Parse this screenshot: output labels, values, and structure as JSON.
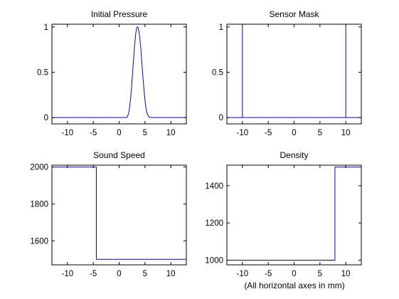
{
  "figure_note": "(All horizontal axes in mm)",
  "colors": {
    "line": "#0000ff",
    "axis": "#000000",
    "background": "#ffffff"
  },
  "chart_data": [
    {
      "type": "line",
      "title": "Initial Pressure",
      "xlabel": "",
      "ylabel": "",
      "xlim": [
        -13,
        13
      ],
      "ylim": [
        -0.07,
        1.03
      ],
      "xticks": [
        -10,
        -5,
        0,
        5,
        10
      ],
      "yticks": [
        0,
        0.5,
        1
      ],
      "ytick_labels": [
        "0",
        "0.5",
        "1"
      ],
      "grid": false,
      "series": [
        {
          "x": [
            -13,
            1.4,
            1.6,
            1.8,
            2.0,
            2.2,
            2.4,
            2.6,
            2.8,
            3.0,
            3.2,
            3.4,
            3.6,
            3.8,
            4.0,
            4.2,
            4.4,
            4.6,
            4.8,
            5.0,
            5.2,
            5.4,
            5.6,
            5.8,
            6.0,
            6.2,
            13
          ],
          "y": [
            0,
            0,
            0.01,
            0.04,
            0.1,
            0.2,
            0.33,
            0.49,
            0.65,
            0.8,
            0.92,
            0.99,
            1.0,
            0.96,
            0.88,
            0.76,
            0.6,
            0.45,
            0.31,
            0.19,
            0.1,
            0.05,
            0.02,
            0.01,
            0.0,
            0,
            0
          ]
        }
      ]
    },
    {
      "type": "line",
      "title": "Sensor Mask",
      "xlabel": "",
      "ylabel": "",
      "xlim": [
        -13,
        13
      ],
      "ylim": [
        -0.07,
        1.03
      ],
      "xticks": [
        -10,
        -5,
        0,
        5,
        10
      ],
      "yticks": [
        0,
        0.5,
        1
      ],
      "ytick_labels": [
        "0",
        "0.5",
        "1"
      ],
      "grid": false,
      "series": [
        {
          "x": [
            -13,
            -10,
            -10,
            -10,
            10,
            10,
            10,
            13
          ],
          "y": [
            0,
            0,
            1,
            0,
            0,
            1,
            0,
            0
          ]
        }
      ]
    },
    {
      "type": "line",
      "title": "Sound Speed",
      "xlabel": "",
      "ylabel": "",
      "xlim": [
        -13,
        13
      ],
      "ylim": [
        1470,
        2010
      ],
      "xticks": [
        -10,
        -5,
        0,
        5,
        10
      ],
      "yticks": [
        1600,
        1800,
        2000
      ],
      "ytick_labels": [
        "1600",
        "1800",
        "2000"
      ],
      "grid": false,
      "series": [
        {
          "x": [
            -13,
            -4.4,
            -4.4,
            13
          ],
          "y": [
            2000,
            2000,
            1500,
            1500
          ]
        }
      ]
    },
    {
      "type": "line",
      "title": "Density",
      "xlabel": "",
      "ylabel": "",
      "xlim": [
        -13,
        13
      ],
      "ylim": [
        975,
        1510
      ],
      "xticks": [
        -10,
        -5,
        0,
        5,
        10
      ],
      "yticks": [
        1000,
        1200,
        1400
      ],
      "ytick_labels": [
        "1000",
        "1200",
        "1400"
      ],
      "grid": false,
      "series": [
        {
          "x": [
            -13,
            7.9,
            7.9,
            13
          ],
          "y": [
            1000,
            1000,
            1500,
            1500
          ]
        }
      ]
    }
  ]
}
